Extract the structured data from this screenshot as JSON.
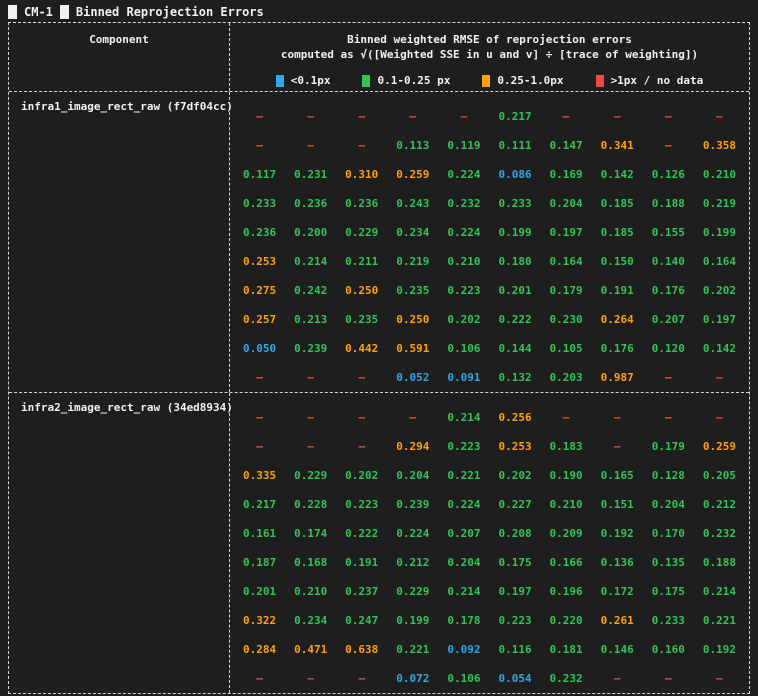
{
  "title": {
    "app_tag": "CM-1",
    "heading": "Binned Reprojection Errors"
  },
  "colors": {
    "blue": "#35a5e5",
    "green": "#35c356",
    "orange": "#ffa014",
    "red": "#ef4a42",
    "fg": "#f1f1f1",
    "bg": "#1e1e1e",
    "border": "#d6d6d6"
  },
  "table": {
    "component_header": "Component",
    "rmse_header_line1": "Binned weighted RMSE of reprojection errors",
    "rmse_header_line2": "computed as √([Weighted SSE in u and v] ÷ [trace of weighting])",
    "no_data_symbol": "–",
    "legend": [
      {
        "label": "<0.1px",
        "color_key": "blue"
      },
      {
        "label": "0.1-0.25 px",
        "color_key": "green"
      },
      {
        "label": "0.25-1.0px",
        "color_key": "orange"
      },
      {
        "label": ">1px / no data",
        "color_key": "red"
      }
    ],
    "thresholds": {
      "blue_below": 0.1,
      "green_below": 0.25,
      "orange_max": 1.0
    },
    "components": [
      {
        "name": "infra1_image_rect_raw (f7df04cc)",
        "grid": [
          [
            "–",
            "–",
            "–",
            "–",
            "–",
            "0.217",
            "–",
            "–",
            "–",
            "–"
          ],
          [
            "–",
            "–",
            "–",
            "0.113",
            "0.119",
            "0.111",
            "0.147",
            "0.341",
            "–",
            "0.358"
          ],
          [
            "0.117",
            "0.231",
            "0.310",
            "0.259",
            "0.224",
            "0.086",
            "0.169",
            "0.142",
            "0.126",
            "0.210"
          ],
          [
            "0.233",
            "0.236",
            "0.236",
            "0.243",
            "0.232",
            "0.233",
            "0.204",
            "0.185",
            "0.188",
            "0.219"
          ],
          [
            "0.236",
            "0.200",
            "0.229",
            "0.234",
            "0.224",
            "0.199",
            "0.197",
            "0.185",
            "0.155",
            "0.199"
          ],
          [
            "0.253",
            "0.214",
            "0.211",
            "0.219",
            "0.210",
            "0.180",
            "0.164",
            "0.150",
            "0.140",
            "0.164"
          ],
          [
            "0.275",
            "0.242",
            "0.250",
            "0.235",
            "0.223",
            "0.201",
            "0.179",
            "0.191",
            "0.176",
            "0.202"
          ],
          [
            "0.257",
            "0.213",
            "0.235",
            "0.250",
            "0.202",
            "0.222",
            "0.230",
            "0.264",
            "0.207",
            "0.197"
          ],
          [
            "0.050",
            "0.239",
            "0.442",
            "0.591",
            "0.106",
            "0.144",
            "0.105",
            "0.176",
            "0.120",
            "0.142"
          ],
          [
            "–",
            "–",
            "–",
            "0.052",
            "0.091",
            "0.132",
            "0.203",
            "0.987",
            "–",
            "–"
          ]
        ]
      },
      {
        "name": "infra2_image_rect_raw (34ed8934)",
        "grid": [
          [
            "–",
            "–",
            "–",
            "–",
            "0.214",
            "0.256",
            "–",
            "–",
            "–",
            "–"
          ],
          [
            "–",
            "–",
            "–",
            "0.294",
            "0.223",
            "0.253",
            "0.183",
            "–",
            "0.179",
            "0.259"
          ],
          [
            "0.335",
            "0.229",
            "0.202",
            "0.204",
            "0.221",
            "0.202",
            "0.190",
            "0.165",
            "0.128",
            "0.205"
          ],
          [
            "0.217",
            "0.228",
            "0.223",
            "0.239",
            "0.224",
            "0.227",
            "0.210",
            "0.151",
            "0.204",
            "0.212"
          ],
          [
            "0.161",
            "0.174",
            "0.222",
            "0.224",
            "0.207",
            "0.208",
            "0.209",
            "0.192",
            "0.170",
            "0.232"
          ],
          [
            "0.187",
            "0.168",
            "0.191",
            "0.212",
            "0.204",
            "0.175",
            "0.166",
            "0.136",
            "0.135",
            "0.188"
          ],
          [
            "0.201",
            "0.210",
            "0.237",
            "0.229",
            "0.214",
            "0.197",
            "0.196",
            "0.172",
            "0.175",
            "0.214"
          ],
          [
            "0.322",
            "0.234",
            "0.247",
            "0.199",
            "0.178",
            "0.223",
            "0.220",
            "0.261",
            "0.233",
            "0.221"
          ],
          [
            "0.284",
            "0.471",
            "0.638",
            "0.221",
            "0.092",
            "0.116",
            "0.181",
            "0.146",
            "0.160",
            "0.192"
          ],
          [
            "–",
            "–",
            "–",
            "0.072",
            "0.106",
            "0.054",
            "0.232",
            "–",
            "–",
            "–"
          ]
        ]
      }
    ]
  }
}
